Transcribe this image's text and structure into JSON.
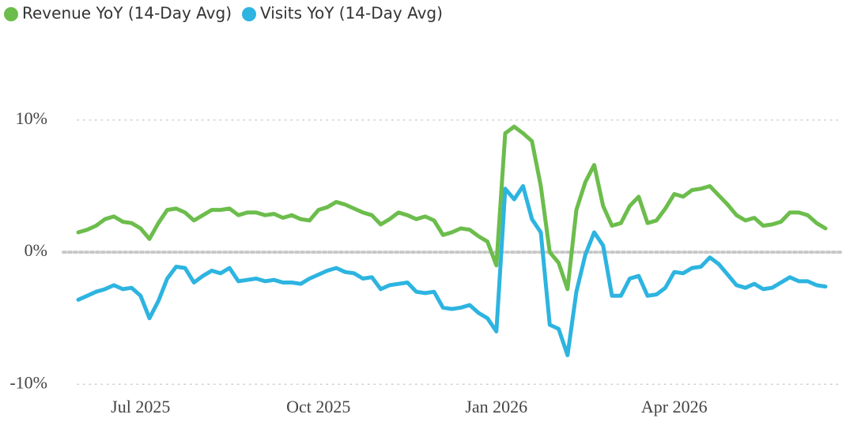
{
  "chart_data": {
    "type": "line",
    "categories": [
      null,
      null,
      null,
      null,
      null,
      null,
      null,
      "Jul 2025",
      null,
      null,
      null,
      null,
      null,
      null,
      null,
      null,
      null,
      null,
      null,
      null,
      null,
      null,
      null,
      null,
      null,
      null,
      null,
      "Oct 2025",
      null,
      null,
      null,
      null,
      null,
      null,
      null,
      null,
      null,
      null,
      null,
      null,
      null,
      null,
      null,
      null,
      null,
      null,
      null,
      "Jan 2026",
      null,
      null,
      null,
      null,
      null,
      null,
      null,
      null,
      null,
      null,
      null,
      null,
      null,
      null,
      null,
      null,
      null,
      null,
      null,
      "Apr 2026",
      null,
      null,
      null,
      null,
      null,
      null,
      null,
      null,
      null,
      null,
      null,
      null,
      null,
      null,
      null,
      null,
      null
    ],
    "series": [
      {
        "name": "Revenue YoY (14-Day Avg)",
        "color": "#6cbd4c",
        "values": [
          1.5,
          1.7,
          2.0,
          2.5,
          2.7,
          2.3,
          2.2,
          1.8,
          1.0,
          2.2,
          3.2,
          3.3,
          3.0,
          2.4,
          2.8,
          3.2,
          3.2,
          3.3,
          2.8,
          3.0,
          3.0,
          2.8,
          2.9,
          2.6,
          2.8,
          2.5,
          2.4,
          3.2,
          3.4,
          3.8,
          3.6,
          3.3,
          3.0,
          2.8,
          2.1,
          2.5,
          3.0,
          2.8,
          2.5,
          2.7,
          2.4,
          1.3,
          1.5,
          1.8,
          1.7,
          1.2,
          0.8,
          -1.0,
          9.0,
          9.5,
          9.0,
          8.4,
          5.0,
          0.0,
          -0.8,
          -2.8,
          3.2,
          5.3,
          6.6,
          3.5,
          2.0,
          2.2,
          3.5,
          4.2,
          2.2,
          2.4,
          3.3,
          4.4,
          4.2,
          4.7,
          4.8,
          5.0,
          4.3,
          3.6,
          2.8,
          2.4,
          2.6,
          2.0,
          2.1,
          2.3,
          3.0,
          3.0,
          2.8,
          2.2,
          1.8
        ]
      },
      {
        "name": "Visits YoY (14-Day Avg)",
        "color": "#2db4e0",
        "values": [
          -3.6,
          -3.3,
          -3.0,
          -2.8,
          -2.5,
          -2.8,
          -2.7,
          -3.3,
          -5.0,
          -3.7,
          -2.0,
          -1.1,
          -1.2,
          -2.3,
          -1.8,
          -1.4,
          -1.6,
          -1.2,
          -2.2,
          -2.1,
          -2.0,
          -2.2,
          -2.1,
          -2.3,
          -2.3,
          -2.4,
          -2.0,
          -1.7,
          -1.4,
          -1.2,
          -1.5,
          -1.6,
          -2.0,
          -1.9,
          -2.8,
          -2.5,
          -2.4,
          -2.3,
          -3.0,
          -3.1,
          -3.0,
          -4.2,
          -4.3,
          -4.2,
          -4.0,
          -4.6,
          -5.0,
          -6.0,
          4.8,
          4.0,
          5.0,
          2.5,
          1.5,
          -5.5,
          -5.8,
          -7.8,
          -3.0,
          -0.2,
          1.5,
          0.5,
          -3.3,
          -3.3,
          -2.0,
          -1.8,
          -3.3,
          -3.2,
          -2.7,
          -1.5,
          -1.6,
          -1.2,
          -1.1,
          -0.4,
          -0.9,
          -1.7,
          -2.5,
          -2.7,
          -2.4,
          -2.8,
          -2.7,
          -2.3,
          -1.9,
          -2.2,
          -2.2,
          -2.5,
          -2.6
        ]
      }
    ],
    "ylim": [
      -11,
      14
    ],
    "yticks": [
      {
        "value": 10,
        "label": "10%"
      },
      {
        "value": 0,
        "label": "0%"
      },
      {
        "value": -10,
        "label": "-10%"
      }
    ],
    "grid": true,
    "legend": "top-left"
  }
}
